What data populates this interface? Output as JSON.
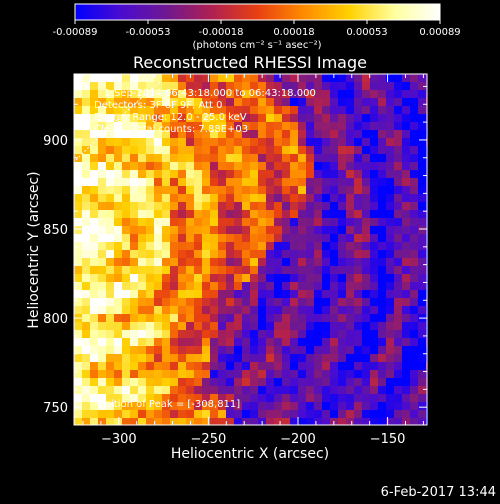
{
  "chart_data": {
    "type": "heatmap",
    "title": "Reconstructed RHESSI Image",
    "xlabel": "Heliocentric X (arcsec)",
    "ylabel": "Heliocentric Y (arcsec)",
    "xlim": [
      -325,
      -128
    ],
    "ylim": [
      740,
      937
    ],
    "x_ticks": [
      -300,
      -250,
      -200,
      -150
    ],
    "y_ticks": [
      750,
      800,
      850,
      900
    ],
    "x_tick_labels": [
      "−300",
      "−250",
      "−200",
      "−150"
    ],
    "y_tick_labels": [
      "750",
      "800",
      "850",
      "900"
    ],
    "colorbar": {
      "ticks": [
        "-0.00089",
        "-0.00053",
        "-0.00018",
        "0.00018",
        "0.00053",
        "0.00089"
      ],
      "vmin": -0.00089,
      "vmax": 0.00089,
      "unit_label": "(photons cm⁻² s⁻¹ asec⁻²)",
      "stops": [
        "#0000ff",
        "#4a0bd0",
        "#6f1890",
        "#b02050",
        "#e84010",
        "#ff8a00",
        "#ffd000",
        "#ffffa0",
        "#ffffff"
      ]
    },
    "annotations": [
      "1-Sep-2014 06:43:18.000 to 06:43:18.000",
      "Detectors: 3F 6F 9F, Att 0",
      "Energy Range: 12.0 - 25.0 keV",
      "Clean   Total counts: 7.88E+03"
    ],
    "position_label": "Position of Peak = [-308,811]",
    "limb_arc": "white dashed limb line in upper-left corner"
  },
  "footer": {
    "timestamp": "6-Feb-2017 13:44"
  }
}
